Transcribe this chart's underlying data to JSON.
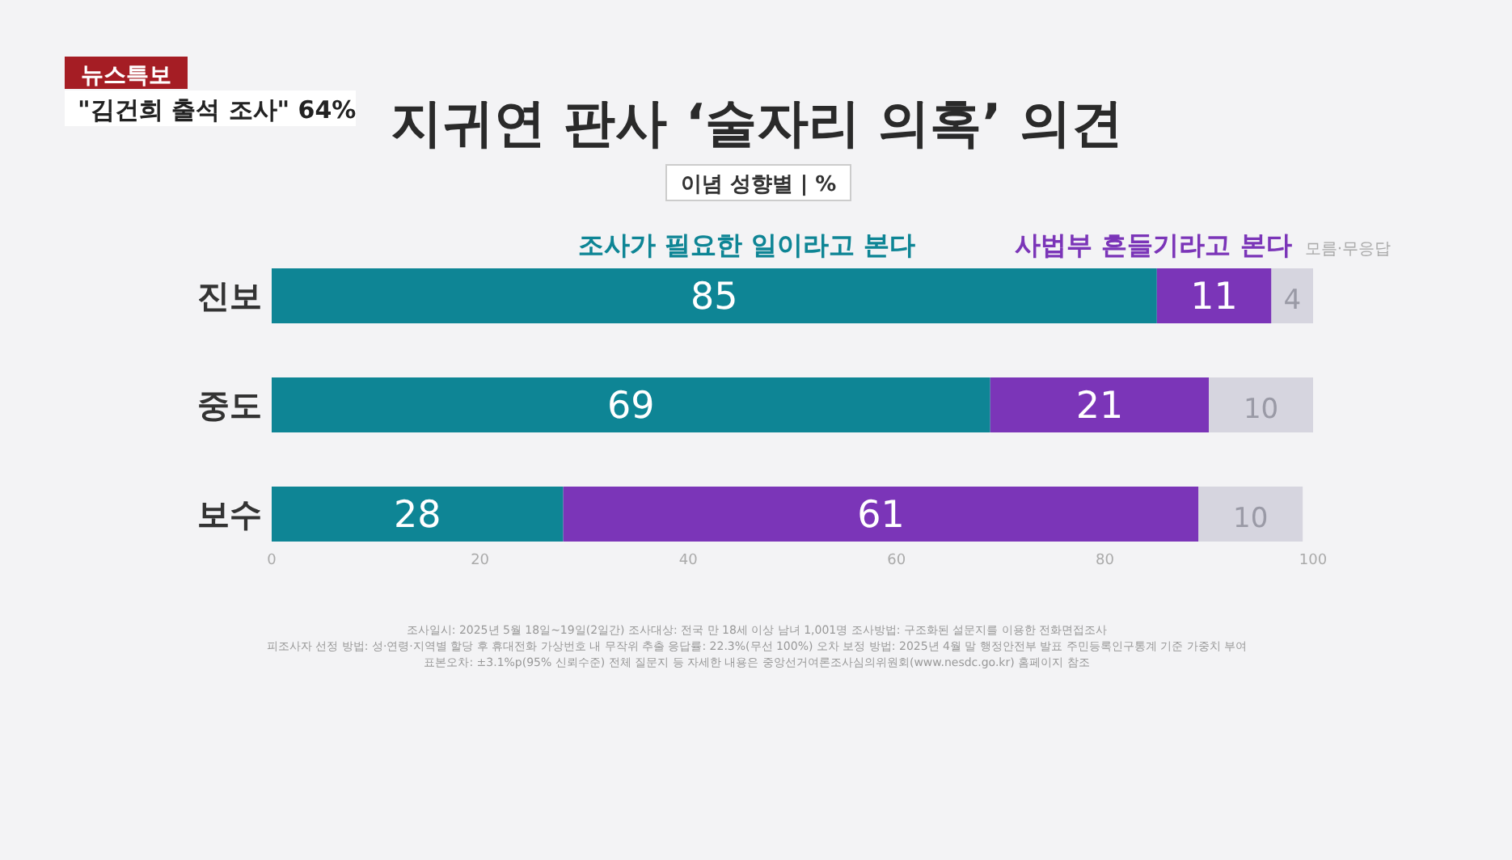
{
  "chart_data": {
    "type": "bar",
    "orientation": "horizontal",
    "stacked": true,
    "title": "지귀연 판사 ‘술자리 의혹’ 의견",
    "subtitle": "이념 성향별 | %",
    "categories": [
      "진보",
      "중도",
      "보수"
    ],
    "series": [
      {
        "name": "조사가 필요한 일이라고 본다",
        "color": "#0e8595",
        "values": [
          85,
          69,
          28
        ]
      },
      {
        "name": "사법부 흔들기라고 본다",
        "color": "#7b35b8",
        "values": [
          11,
          21,
          61
        ]
      },
      {
        "name": "모름·무응답",
        "color": "#d6d5df",
        "values": [
          4,
          10,
          10
        ]
      }
    ],
    "xlim": [
      0,
      100
    ],
    "xticks": [
      0,
      20,
      40,
      60,
      80,
      100
    ],
    "data_labels": true,
    "legend": "top",
    "grid": false,
    "annotations": [
      "뉴스특보",
      "\"김건희 출석 조사\" 64%",
      "조사일시: 2025년 5월 18일~19일(2일간)    조사대상: 전국 만 18세 이상 남녀 1,001명    조사방법: 구조화된 설문지를 이용한 전화면접조사",
      "피조사자 선정 방법: 성·연령·지역별 할당 후 휴대전화 가상번호 내 무작위 추출    응답률: 22.3%(무선 100%)    오차 보정 방법: 2025년 4월 말 행정안전부 발표 주민등록인구통계 기준 가중치 부여",
      "표본오차: ±3.1%p(95% 신뢰수준)    전체 질문지 등 자세한 내용은 중앙선거여론조사심의위원회(www.nesdc.go.kr) 홈페이지 참조"
    ]
  }
}
